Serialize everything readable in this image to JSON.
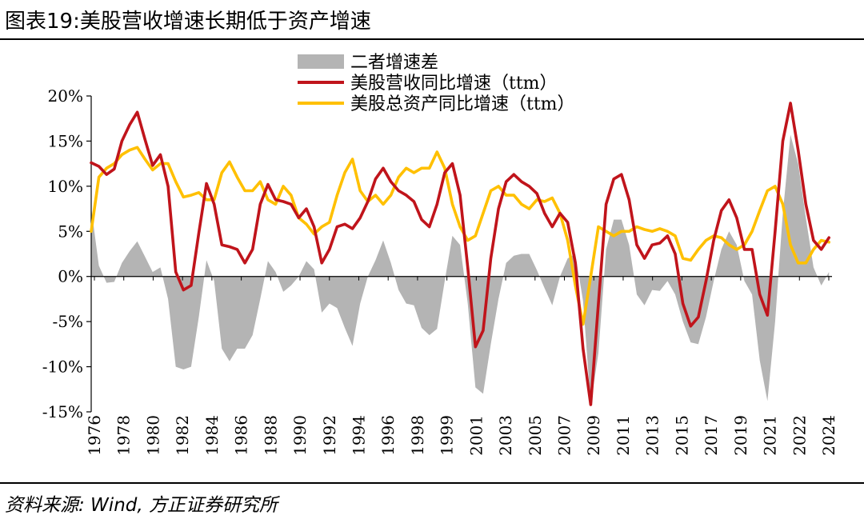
{
  "title": "图表19:美股营收增速长期低于资产增速",
  "source": "资料来源: Wind, 方正证券研究所",
  "chart_data": {
    "type": "line",
    "ylim": [
      -15,
      20
    ],
    "y_ticks": [
      20,
      15,
      10,
      5,
      0,
      -5,
      -10,
      -15
    ],
    "y_tick_labels": [
      "20%",
      "15%",
      "10%",
      "5%",
      "0%",
      "-5%",
      "-10%",
      "-15%"
    ],
    "x_range": [
      1976,
      2024.2
    ],
    "x_tick_labels": [
      "1976",
      "1978",
      "1980",
      "1982",
      "1984",
      "1986",
      "1988",
      "1990",
      "1992",
      "1994",
      "1996",
      "1998",
      "1999",
      "2001",
      "2003",
      "2005",
      "2007",
      "2009",
      "2011",
      "2013",
      "2015",
      "2017",
      "2019",
      "2021",
      "2022",
      "2024"
    ],
    "legend": [
      {
        "name": "二者增速差",
        "kind": "area",
        "color": "#b4b4b4"
      },
      {
        "name": "美股营收同比增速（ttm）",
        "kind": "line",
        "color": "#c0141b"
      },
      {
        "name": "美股总资产同比增速（ttm）",
        "kind": "line",
        "color": "#ffc000"
      }
    ],
    "series": [
      {
        "name": "美股营收同比增速（ttm）",
        "color": "#c0141b",
        "points": [
          [
            1976,
            12.6
          ],
          [
            1976.5,
            12.2
          ],
          [
            1977,
            11.3
          ],
          [
            1977.5,
            11.9
          ],
          [
            1978,
            15
          ],
          [
            1978.5,
            16.8
          ],
          [
            1979,
            18.2
          ],
          [
            1979.5,
            15.2
          ],
          [
            1980,
            12.3
          ],
          [
            1980.5,
            13.5
          ],
          [
            1981,
            10
          ],
          [
            1981.5,
            0.5
          ],
          [
            1982,
            -1.5
          ],
          [
            1982.5,
            -1
          ],
          [
            1983,
            4.8
          ],
          [
            1983.5,
            10.3
          ],
          [
            1984,
            8
          ],
          [
            1984.5,
            3.5
          ],
          [
            1985,
            3.3
          ],
          [
            1985.5,
            3
          ],
          [
            1986,
            1.5
          ],
          [
            1986.5,
            3
          ],
          [
            1987,
            8
          ],
          [
            1987.5,
            10.2
          ],
          [
            1988,
            8.5
          ],
          [
            1988.5,
            8.3
          ],
          [
            1989,
            8
          ],
          [
            1989.5,
            6.5
          ],
          [
            1990,
            7.5
          ],
          [
            1990.5,
            5.5
          ],
          [
            1991,
            1.5
          ],
          [
            1991.5,
            3
          ],
          [
            1992,
            5.5
          ],
          [
            1992.5,
            5.8
          ],
          [
            1993,
            5.3
          ],
          [
            1993.5,
            6.5
          ],
          [
            1994,
            8.3
          ],
          [
            1994.5,
            10.8
          ],
          [
            1995,
            12
          ],
          [
            1995.5,
            10.5
          ],
          [
            1996,
            9.5
          ],
          [
            1996.5,
            9
          ],
          [
            1997,
            8.3
          ],
          [
            1997.5,
            6.3
          ],
          [
            1998,
            5.5
          ],
          [
            1998.5,
            8
          ],
          [
            1999,
            11.5
          ],
          [
            1999.5,
            12.5
          ],
          [
            2000,
            9
          ],
          [
            2000.5,
            1
          ],
          [
            2001,
            -7.8
          ],
          [
            2001.5,
            -6
          ],
          [
            2002,
            2
          ],
          [
            2002.5,
            7.5
          ],
          [
            2003,
            10.5
          ],
          [
            2003.5,
            11.3
          ],
          [
            2004,
            10.5
          ],
          [
            2004.5,
            10
          ],
          [
            2005,
            9.2
          ],
          [
            2005.5,
            7
          ],
          [
            2006,
            5.5
          ],
          [
            2006.5,
            7
          ],
          [
            2007,
            6
          ],
          [
            2007.5,
            1.5
          ],
          [
            2008,
            -8
          ],
          [
            2008.5,
            -14.2
          ],
          [
            2009,
            -3
          ],
          [
            2009.5,
            8
          ],
          [
            2010,
            10.8
          ],
          [
            2010.5,
            11.3
          ],
          [
            2011,
            8.5
          ],
          [
            2011.5,
            3.5
          ],
          [
            2012,
            2
          ],
          [
            2012.5,
            3.5
          ],
          [
            2013,
            3.7
          ],
          [
            2013.5,
            4.5
          ],
          [
            2014,
            2.5
          ],
          [
            2014.5,
            -3
          ],
          [
            2015,
            -5.5
          ],
          [
            2015.5,
            -4.5
          ],
          [
            2016,
            -0.5
          ],
          [
            2016.5,
            4
          ],
          [
            2017,
            7.3
          ],
          [
            2017.5,
            8.5
          ],
          [
            2018,
            6.5
          ],
          [
            2018.5,
            3
          ],
          [
            2019,
            3
          ],
          [
            2019.5,
            -2
          ],
          [
            2020,
            -4.3
          ],
          [
            2020.5,
            5
          ],
          [
            2021,
            15
          ],
          [
            2021.5,
            19.2
          ],
          [
            2022,
            14
          ],
          [
            2022.5,
            8
          ],
          [
            2023,
            4
          ],
          [
            2023.5,
            3
          ],
          [
            2024,
            4.3
          ]
        ]
      },
      {
        "name": "美股总资产同比增速（ttm）",
        "color": "#ffc000",
        "points": [
          [
            1976,
            5
          ],
          [
            1976.5,
            11
          ],
          [
            1977,
            12
          ],
          [
            1977.5,
            12.5
          ],
          [
            1978,
            13.5
          ],
          [
            1978.5,
            14
          ],
          [
            1979,
            14.3
          ],
          [
            1979.5,
            13
          ],
          [
            1980,
            11.8
          ],
          [
            1980.5,
            12.5
          ],
          [
            1981,
            12.5
          ],
          [
            1981.5,
            10.5
          ],
          [
            1982,
            8.8
          ],
          [
            1982.5,
            9
          ],
          [
            1983,
            9.3
          ],
          [
            1983.5,
            8.5
          ],
          [
            1984,
            8.5
          ],
          [
            1984.5,
            11.5
          ],
          [
            1985,
            12.7
          ],
          [
            1985.5,
            11
          ],
          [
            1986,
            9.5
          ],
          [
            1986.5,
            9.5
          ],
          [
            1987,
            10.5
          ],
          [
            1987.5,
            8.5
          ],
          [
            1988,
            8
          ],
          [
            1988.5,
            10
          ],
          [
            1989,
            9
          ],
          [
            1989.5,
            6.5
          ],
          [
            1990,
            5.8
          ],
          [
            1990.5,
            4.7
          ],
          [
            1991,
            5.5
          ],
          [
            1991.5,
            6
          ],
          [
            1992,
            9
          ],
          [
            1992.5,
            11.5
          ],
          [
            1993,
            13
          ],
          [
            1993.5,
            9.5
          ],
          [
            1994,
            8.3
          ],
          [
            1994.5,
            9
          ],
          [
            1995,
            8
          ],
          [
            1995.5,
            9
          ],
          [
            1996,
            11
          ],
          [
            1996.5,
            12
          ],
          [
            1997,
            11.5
          ],
          [
            1997.5,
            12
          ],
          [
            1998,
            12
          ],
          [
            1998.5,
            13.8
          ],
          [
            1999,
            12
          ],
          [
            1999.5,
            8
          ],
          [
            2000,
            5.5
          ],
          [
            2000.5,
            4
          ],
          [
            2001,
            4.5
          ],
          [
            2001.5,
            7
          ],
          [
            2002,
            9.5
          ],
          [
            2002.5,
            10
          ],
          [
            2003,
            9
          ],
          [
            2003.5,
            9
          ],
          [
            2004,
            8
          ],
          [
            2004.5,
            7.5
          ],
          [
            2005,
            8.5
          ],
          [
            2005.5,
            8.3
          ],
          [
            2006,
            8.7
          ],
          [
            2006.5,
            7
          ],
          [
            2007,
            4
          ],
          [
            2007.5,
            -1
          ],
          [
            2008,
            -5.3
          ],
          [
            2008.5,
            0
          ],
          [
            2009,
            5.5
          ],
          [
            2009.5,
            5
          ],
          [
            2010,
            4.5
          ],
          [
            2010.5,
            5
          ],
          [
            2011,
            5
          ],
          [
            2011.5,
            5.5
          ],
          [
            2012,
            5.2
          ],
          [
            2012.5,
            5
          ],
          [
            2013,
            5.3
          ],
          [
            2013.5,
            5
          ],
          [
            2014,
            4.5
          ],
          [
            2014.5,
            2
          ],
          [
            2015,
            1.8
          ],
          [
            2015.5,
            3
          ],
          [
            2016,
            4
          ],
          [
            2016.5,
            4.5
          ],
          [
            2017,
            4.3
          ],
          [
            2017.5,
            3.5
          ],
          [
            2018,
            3
          ],
          [
            2018.5,
            3.5
          ],
          [
            2019,
            5
          ],
          [
            2019.5,
            7.3
          ],
          [
            2020,
            9.5
          ],
          [
            2020.5,
            10
          ],
          [
            2021,
            8
          ],
          [
            2021.5,
            3.5
          ],
          [
            2022,
            1.5
          ],
          [
            2022.5,
            1.5
          ],
          [
            2023,
            3
          ],
          [
            2023.5,
            4
          ],
          [
            2024,
            3.8
          ]
        ]
      }
    ]
  }
}
